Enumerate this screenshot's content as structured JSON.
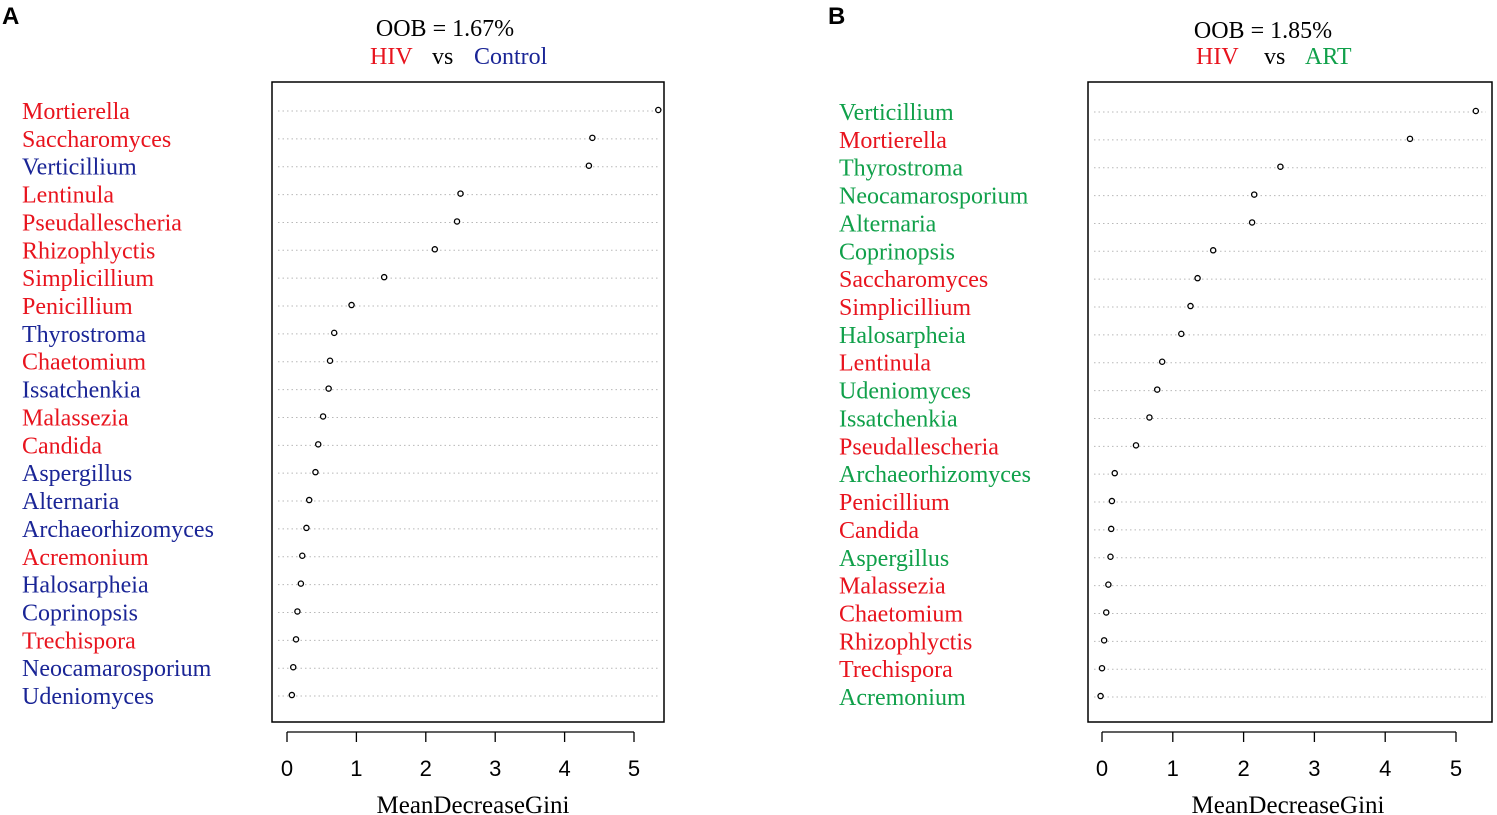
{
  "colors": {
    "hiv": "#e8141e",
    "control": "#1a2596",
    "art": "#10a04a",
    "text": "#000000",
    "grid": "#b8b8b8"
  },
  "chart_data": [
    {
      "type": "dotplot",
      "panel": "A",
      "oob_text": "OOB = 1.67%",
      "group1": "HIV",
      "vs": "vs",
      "group2": "Control",
      "xlabel": "MeanDecreaseGini",
      "xticks": [
        0,
        1,
        2,
        3,
        4,
        5
      ],
      "xlim": [
        -0.2,
        5.5
      ],
      "items": [
        {
          "name": "Mortierella",
          "value": 5.35,
          "group": "hiv"
        },
        {
          "name": "Saccharomyces",
          "value": 4.4,
          "group": "hiv"
        },
        {
          "name": "Verticillium",
          "value": 4.35,
          "group": "control"
        },
        {
          "name": "Lentinula",
          "value": 2.5,
          "group": "hiv"
        },
        {
          "name": "Pseudallescheria",
          "value": 2.45,
          "group": "hiv"
        },
        {
          "name": "Rhizophlyctis",
          "value": 2.13,
          "group": "hiv"
        },
        {
          "name": "Simplicillium",
          "value": 1.4,
          "group": "hiv"
        },
        {
          "name": "Penicillium",
          "value": 0.93,
          "group": "hiv"
        },
        {
          "name": "Thyrostroma",
          "value": 0.68,
          "group": "control"
        },
        {
          "name": "Chaetomium",
          "value": 0.62,
          "group": "hiv"
        },
        {
          "name": "Issatchenkia",
          "value": 0.6,
          "group": "control"
        },
        {
          "name": "Malassezia",
          "value": 0.52,
          "group": "hiv"
        },
        {
          "name": "Candida",
          "value": 0.45,
          "group": "hiv"
        },
        {
          "name": "Aspergillus",
          "value": 0.41,
          "group": "control"
        },
        {
          "name": "Alternaria",
          "value": 0.32,
          "group": "control"
        },
        {
          "name": "Archaeorhizomyces",
          "value": 0.28,
          "group": "control"
        },
        {
          "name": "Acremonium",
          "value": 0.22,
          "group": "hiv"
        },
        {
          "name": "Halosarpheia",
          "value": 0.2,
          "group": "control"
        },
        {
          "name": "Coprinopsis",
          "value": 0.15,
          "group": "control"
        },
        {
          "name": "Trechispora",
          "value": 0.13,
          "group": "hiv"
        },
        {
          "name": "Neocamarosporium",
          "value": 0.09,
          "group": "control"
        },
        {
          "name": "Udeniomyces",
          "value": 0.07,
          "group": "control"
        }
      ]
    },
    {
      "type": "dotplot",
      "panel": "B",
      "oob_text": "OOB = 1.85%",
      "group1": "HIV",
      "vs": "vs",
      "group2": "ART",
      "xlabel": "MeanDecreaseGini",
      "xticks": [
        0,
        1,
        2,
        3,
        4,
        5
      ],
      "xlim": [
        -0.2,
        5.5
      ],
      "items": [
        {
          "name": "Verticillium",
          "value": 5.28,
          "group": "art"
        },
        {
          "name": "Mortierella",
          "value": 4.35,
          "group": "hiv"
        },
        {
          "name": "Thyrostroma",
          "value": 2.52,
          "group": "art"
        },
        {
          "name": "Neocamarosporium",
          "value": 2.15,
          "group": "art"
        },
        {
          "name": "Alternaria",
          "value": 2.12,
          "group": "art"
        },
        {
          "name": "Coprinopsis",
          "value": 1.57,
          "group": "art"
        },
        {
          "name": "Saccharomyces",
          "value": 1.35,
          "group": "hiv"
        },
        {
          "name": "Simplicillium",
          "value": 1.25,
          "group": "hiv"
        },
        {
          "name": "Halosarpheia",
          "value": 1.12,
          "group": "art"
        },
        {
          "name": "Lentinula",
          "value": 0.85,
          "group": "hiv"
        },
        {
          "name": "Udeniomyces",
          "value": 0.78,
          "group": "art"
        },
        {
          "name": "Issatchenkia",
          "value": 0.67,
          "group": "art"
        },
        {
          "name": "Pseudallescheria",
          "value": 0.48,
          "group": "hiv"
        },
        {
          "name": "Archaeorhizomyces",
          "value": 0.18,
          "group": "art"
        },
        {
          "name": "Penicillium",
          "value": 0.14,
          "group": "hiv"
        },
        {
          "name": "Candida",
          "value": 0.13,
          "group": "hiv"
        },
        {
          "name": "Aspergillus",
          "value": 0.12,
          "group": "art"
        },
        {
          "name": "Malassezia",
          "value": 0.09,
          "group": "hiv"
        },
        {
          "name": "Chaetomium",
          "value": 0.06,
          "group": "hiv"
        },
        {
          "name": "Rhizophlyctis",
          "value": 0.03,
          "group": "hiv"
        },
        {
          "name": "Trechispora",
          "value": 0.0,
          "group": "hiv"
        },
        {
          "name": "Acremonium",
          "value": -0.02,
          "group": "art"
        }
      ]
    }
  ]
}
